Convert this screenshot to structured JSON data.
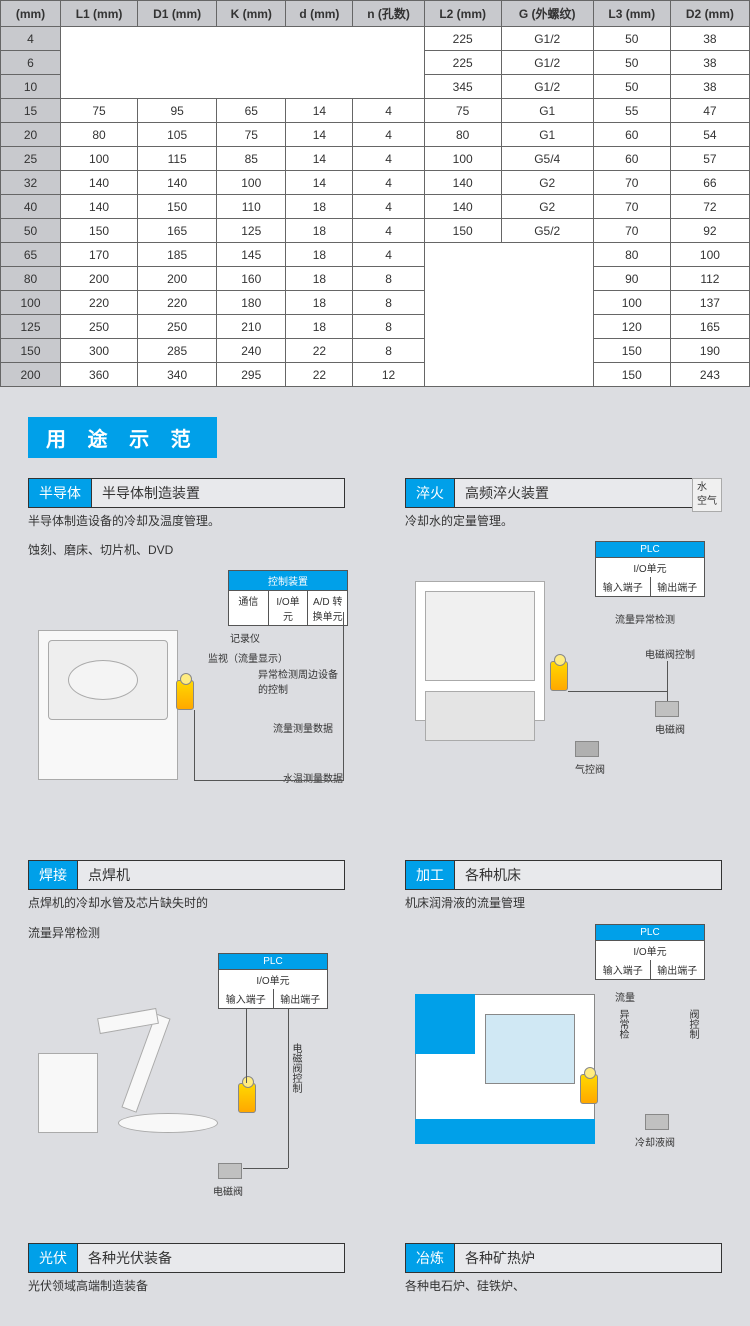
{
  "table": {
    "headers": [
      "(mm)",
      "L1 (mm)",
      "D1 (mm)",
      "K (mm)",
      "d (mm)",
      "n (孔数)",
      "L2 (mm)",
      "G (外螺纹)",
      "L3 (mm)",
      "D2 (mm)"
    ],
    "rows": [
      {
        "dn": "4",
        "l1": "",
        "d1": "",
        "k": "",
        "d": "",
        "n": "",
        "l2": "225",
        "g": "G1/2",
        "l3": "50",
        "d2": "38",
        "merge": "top"
      },
      {
        "dn": "6",
        "l1": "",
        "d1": "",
        "k": "",
        "d": "",
        "n": "",
        "l2": "225",
        "g": "G1/2",
        "l3": "50",
        "d2": "38",
        "merge": "mid"
      },
      {
        "dn": "10",
        "l1": "",
        "d1": "",
        "k": "",
        "d": "",
        "n": "",
        "l2": "345",
        "g": "G1/2",
        "l3": "50",
        "d2": "38",
        "merge": "bot"
      },
      {
        "dn": "15",
        "l1": "75",
        "d1": "95",
        "k": "65",
        "d": "14",
        "n": "4",
        "l2": "75",
        "g": "G1",
        "l3": "55",
        "d2": "47"
      },
      {
        "dn": "20",
        "l1": "80",
        "d1": "105",
        "k": "75",
        "d": "14",
        "n": "4",
        "l2": "80",
        "g": "G1",
        "l3": "60",
        "d2": "54"
      },
      {
        "dn": "25",
        "l1": "100",
        "d1": "115",
        "k": "85",
        "d": "14",
        "n": "4",
        "l2": "100",
        "g": "G5/4",
        "l3": "60",
        "d2": "57"
      },
      {
        "dn": "32",
        "l1": "140",
        "d1": "140",
        "k": "100",
        "d": "14",
        "n": "4",
        "l2": "140",
        "g": "G2",
        "l3": "70",
        "d2": "66"
      },
      {
        "dn": "40",
        "l1": "140",
        "d1": "150",
        "k": "110",
        "d": "18",
        "n": "4",
        "l2": "140",
        "g": "G2",
        "l3": "70",
        "d2": "72"
      },
      {
        "dn": "50",
        "l1": "150",
        "d1": "165",
        "k": "125",
        "d": "18",
        "n": "4",
        "l2": "150",
        "g": "G5/2",
        "l3": "70",
        "d2": "92"
      },
      {
        "dn": "65",
        "l1": "170",
        "d1": "185",
        "k": "145",
        "d": "18",
        "n": "4",
        "l2": "",
        "g": "",
        "l3": "80",
        "d2": "100",
        "merge2": "top"
      },
      {
        "dn": "80",
        "l1": "200",
        "d1": "200",
        "k": "160",
        "d": "18",
        "n": "8",
        "l2": "",
        "g": "",
        "l3": "90",
        "d2": "112",
        "merge2": "mid"
      },
      {
        "dn": "100",
        "l1": "220",
        "d1": "220",
        "k": "180",
        "d": "18",
        "n": "8",
        "l2": "",
        "g": "",
        "l3": "100",
        "d2": "137",
        "merge2": "mid"
      },
      {
        "dn": "125",
        "l1": "250",
        "d1": "250",
        "k": "210",
        "d": "18",
        "n": "8",
        "l2": "",
        "g": "",
        "l3": "120",
        "d2": "165",
        "merge2": "mid"
      },
      {
        "dn": "150",
        "l1": "300",
        "d1": "285",
        "k": "240",
        "d": "22",
        "n": "8",
        "l2": "",
        "g": "",
        "l3": "150",
        "d2": "190",
        "merge2": "mid"
      },
      {
        "dn": "200",
        "l1": "360",
        "d1": "340",
        "k": "295",
        "d": "22",
        "n": "12",
        "l2": "",
        "g": "",
        "l3": "150",
        "d2": "243",
        "merge2": "bot"
      }
    ]
  },
  "sectionTitle": "用 途 示 范",
  "apps": {
    "semi": {
      "tag": "半导体",
      "title": "半导体制造装置",
      "desc1": "半导体制造设备的冷却及温度管理。",
      "desc2": "蚀刻、磨床、切片机、DVD",
      "ctl": {
        "top": "控制装置",
        "cells": [
          "通信",
          "I/O单元",
          "A/D 转换单元"
        ]
      },
      "labels": {
        "rec": "记录仪",
        "monitor": "监视（流量显示）",
        "abnormal": "异常检测周边设备的控制",
        "flowdata": "流量测量数据",
        "tempdata": "水温测量数据"
      }
    },
    "quench": {
      "tag": "淬火",
      "title": "高频淬火装置",
      "desc1": "冷却水的定量管理。",
      "corner": {
        "water": "水",
        "air": "空气"
      },
      "ctl": {
        "top": "PLC",
        "row1": "I/O单元",
        "cells": [
          "输入端子",
          "输出端子"
        ]
      },
      "labels": {
        "abn": "流量异常检测",
        "solctl": "电磁阀控制",
        "sol": "电磁阀",
        "airv": "气控阀"
      }
    },
    "weld": {
      "tag": "焊接",
      "title": "点焊机",
      "desc1": "点焊机的冷却水管及芯片缺失时的",
      "desc2": "流量异常检测",
      "ctl": {
        "top": "PLC",
        "row1": "I/O单元",
        "cells": [
          "输入端子",
          "输出端子"
        ]
      },
      "labels": {
        "solctl": "电磁阀控制",
        "sol": "电磁阀"
      }
    },
    "machine": {
      "tag": "加工",
      "title": "各种机床",
      "desc1": "机床润滑液的流量管理",
      "ctl": {
        "top": "PLC",
        "row1": "I/O单元",
        "cells": [
          "输入端子",
          "输出端子"
        ]
      },
      "labels": {
        "flow": "流量",
        "abn": "异常检",
        "valve": "阀控制",
        "coolant": "冷却液阀"
      }
    },
    "pv": {
      "tag": "光伏",
      "title": "各种光伏装备",
      "desc1": "光伏领域高端制造装备"
    },
    "smelt": {
      "tag": "冶炼",
      "title": "各种矿热炉",
      "desc1": "各种电石炉、硅铁炉、"
    }
  }
}
